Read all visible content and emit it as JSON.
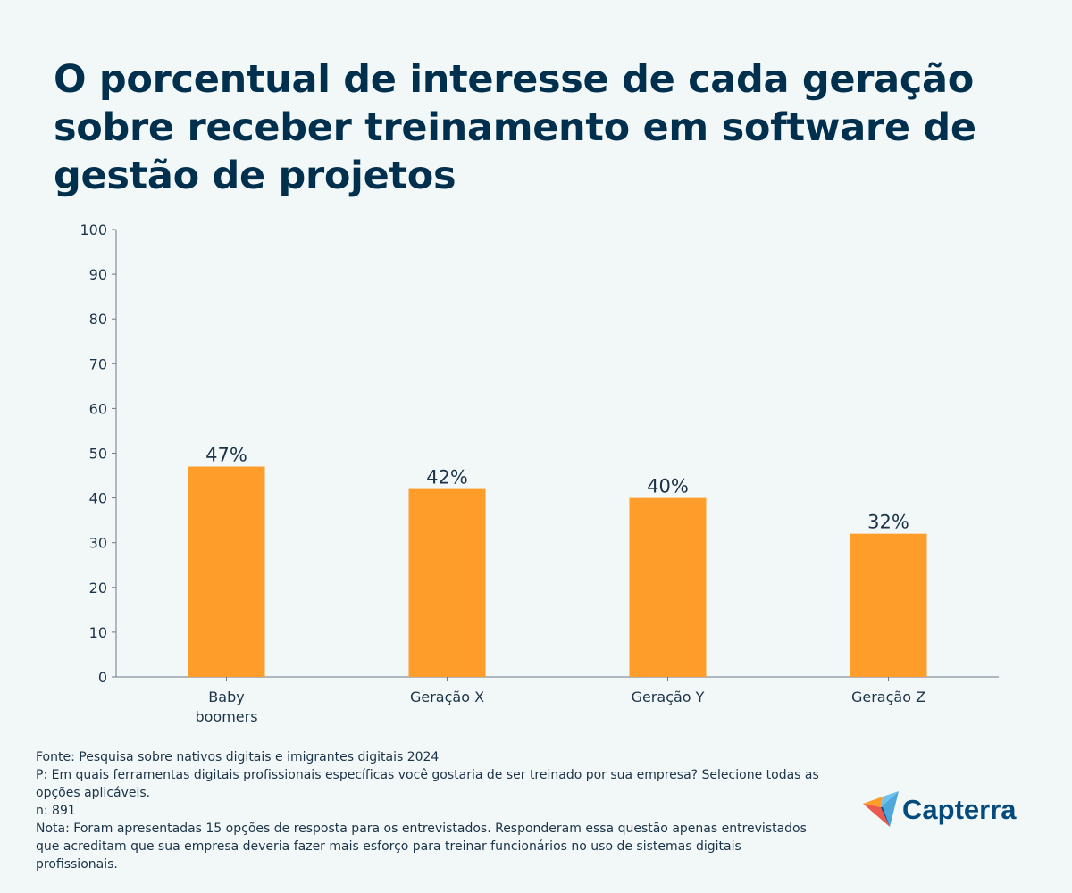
{
  "title": "O porcentual de interesse de cada geração sobre receber treinamento em software de gestão de projetos",
  "chart_data": {
    "type": "bar",
    "categories": [
      [
        "Baby",
        "boomers"
      ],
      [
        "Geração X"
      ],
      [
        "Geração Y"
      ],
      [
        "Geração Z"
      ]
    ],
    "values": [
      47,
      42,
      40,
      32
    ],
    "data_labels": [
      "47%",
      "42%",
      "40%",
      "32%"
    ],
    "ylim": [
      0,
      100
    ],
    "yticks": [
      0,
      10,
      20,
      30,
      40,
      50,
      60,
      70,
      80,
      90,
      100
    ],
    "grid": false,
    "bar_color": "#ff9d2b"
  },
  "notes": [
    "Fonte: Pesquisa sobre nativos digitais e imigrantes digitais 2024",
    "P: Em quais ferramentas digitais profissionais específicas você gostaria de ser treinado por sua empresa? Selecione todas as opções aplicáveis.",
    "n: 891",
    "Nota: Foram apresentadas 15 opções de resposta para os entrevistados. Responderam essa questão apenas entrevistados que acreditam que sua empresa deveria fazer mais esforço para treinar funcionários no uso de sistemas digitais profissionais."
  ],
  "logo": {
    "text": "Capterra"
  }
}
